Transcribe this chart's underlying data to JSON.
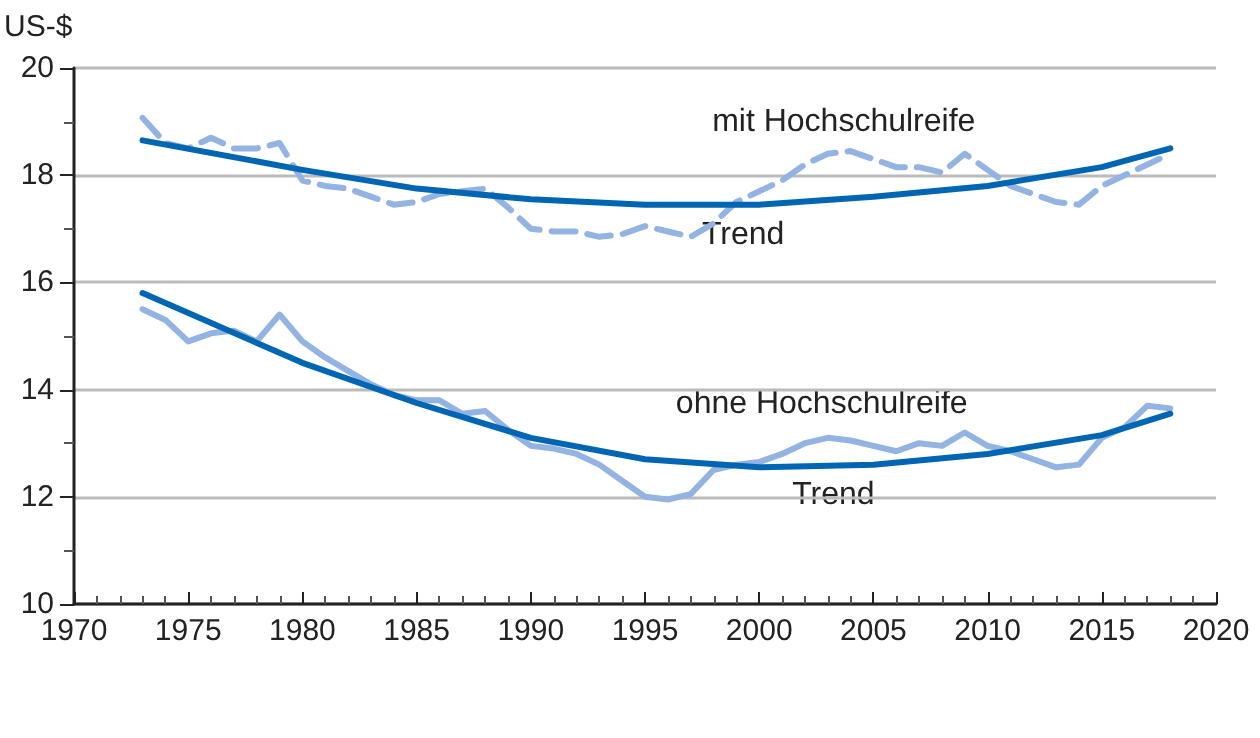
{
  "chart_data": {
    "type": "line",
    "ylabel": "US-$",
    "xlim": [
      1970,
      2020
    ],
    "xticks": [
      1970,
      1975,
      1980,
      1985,
      1990,
      1995,
      2000,
      2005,
      2010,
      2015,
      2020
    ],
    "ylim": [
      10,
      20
    ],
    "yticks": [
      10,
      12,
      14,
      16,
      18,
      20
    ],
    "grid": "y",
    "marker": "none",
    "legend": false,
    "x": [
      1973,
      1974,
      1975,
      1976,
      1977,
      1978,
      1979,
      1980,
      1981,
      1982,
      1983,
      1984,
      1985,
      1986,
      1987,
      1988,
      1989,
      1990,
      1991,
      1992,
      1993,
      1994,
      1995,
      1996,
      1997,
      1998,
      1999,
      2000,
      2001,
      2002,
      2003,
      2004,
      2005,
      2006,
      2007,
      2008,
      2009,
      2010,
      2011,
      2012,
      2013,
      2014,
      2015,
      2016,
      2017,
      2018
    ],
    "series": [
      {
        "name": "mit Hochschulreife",
        "color": "#93b3e3",
        "line_style": "dashed",
        "values": [
          19.07,
          18.6,
          18.5,
          18.7,
          18.5,
          18.5,
          18.6,
          17.9,
          17.8,
          17.75,
          17.6,
          17.45,
          17.5,
          17.65,
          17.7,
          17.75,
          17.4,
          17.0,
          16.95,
          16.95,
          16.85,
          16.9,
          17.05,
          16.95,
          16.85,
          17.1,
          17.5,
          17.7,
          17.9,
          18.2,
          18.4,
          18.45,
          18.3,
          18.15,
          18.15,
          18.05,
          18.4,
          18.1,
          17.8,
          17.65,
          17.5,
          17.45,
          17.8,
          18.0,
          18.2,
          18.4
        ]
      },
      {
        "name": "ohne Hochschulreife",
        "color": "#93b3e3",
        "line_style": "solid",
        "values": [
          15.5,
          15.3,
          14.9,
          15.05,
          15.1,
          14.9,
          15.4,
          14.9,
          14.6,
          14.35,
          14.1,
          13.9,
          13.8,
          13.8,
          13.55,
          13.6,
          13.25,
          12.95,
          12.9,
          12.8,
          12.6,
          12.3,
          12.0,
          11.95,
          12.05,
          12.5,
          12.6,
          12.65,
          12.8,
          13.0,
          13.1,
          13.05,
          12.95,
          12.85,
          13.0,
          12.95,
          13.2,
          12.95,
          12.85,
          12.7,
          12.55,
          12.6,
          13.1,
          13.3,
          13.7,
          13.65
        ]
      },
      {
        "name": "Trend",
        "color": "#0066b3",
        "line_style": "solid",
        "x": [
          1973,
          1980,
          1985,
          1990,
          1995,
          2000,
          2005,
          2010,
          2015,
          2018
        ],
        "values": [
          18.65,
          18.1,
          17.75,
          17.55,
          17.45,
          17.45,
          17.6,
          17.8,
          18.15,
          18.5
        ]
      },
      {
        "name": "Trend",
        "color": "#0066b3",
        "line_style": "solid",
        "x": [
          1973,
          1980,
          1985,
          1990,
          1995,
          2000,
          2005,
          2010,
          2015,
          2018
        ],
        "values": [
          15.8,
          14.5,
          13.75,
          13.1,
          12.7,
          12.55,
          12.6,
          12.8,
          13.15,
          13.55
        ]
      }
    ]
  }
}
